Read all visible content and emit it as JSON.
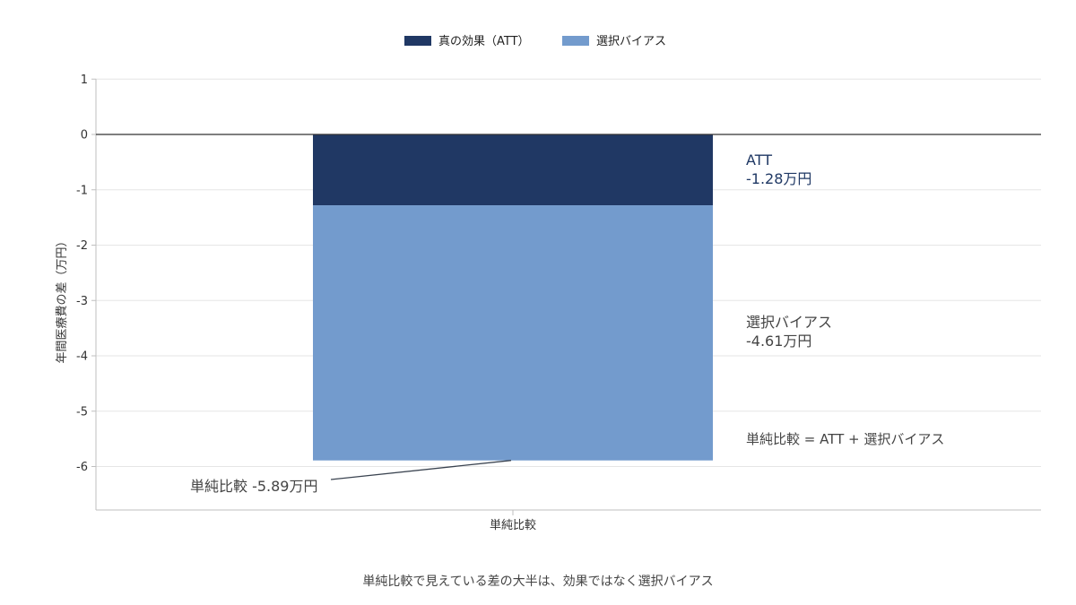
{
  "chart_data": {
    "type": "bar",
    "stacked": true,
    "categories": [
      "単純比較"
    ],
    "series": [
      {
        "name": "真の効果（ATT）",
        "values": [
          -1.28
        ],
        "color": "#203864"
      },
      {
        "name": "選択バイアス",
        "values": [
          -4.61
        ],
        "color": "#739bcd"
      }
    ],
    "ylabel": "年間医療費の差（万円）",
    "ylim": [
      -6.8,
      1
    ],
    "yticks": [
      1,
      0,
      -1,
      -2,
      -3,
      -4,
      -5,
      -6
    ],
    "grid": true,
    "legend": "top-center",
    "annotations": {
      "att_line1": "ATT",
      "att_line2": "-1.28万円",
      "bias_line1": "選択バイアス",
      "bias_line2": "-4.61万円",
      "equation": "単純比較 = ATT + 選択バイアス",
      "total": "単純比較 -5.89万円",
      "total_value": -5.89
    },
    "caption": "単純比較で見えている差の大半は、効果ではなく選択バイアス"
  }
}
